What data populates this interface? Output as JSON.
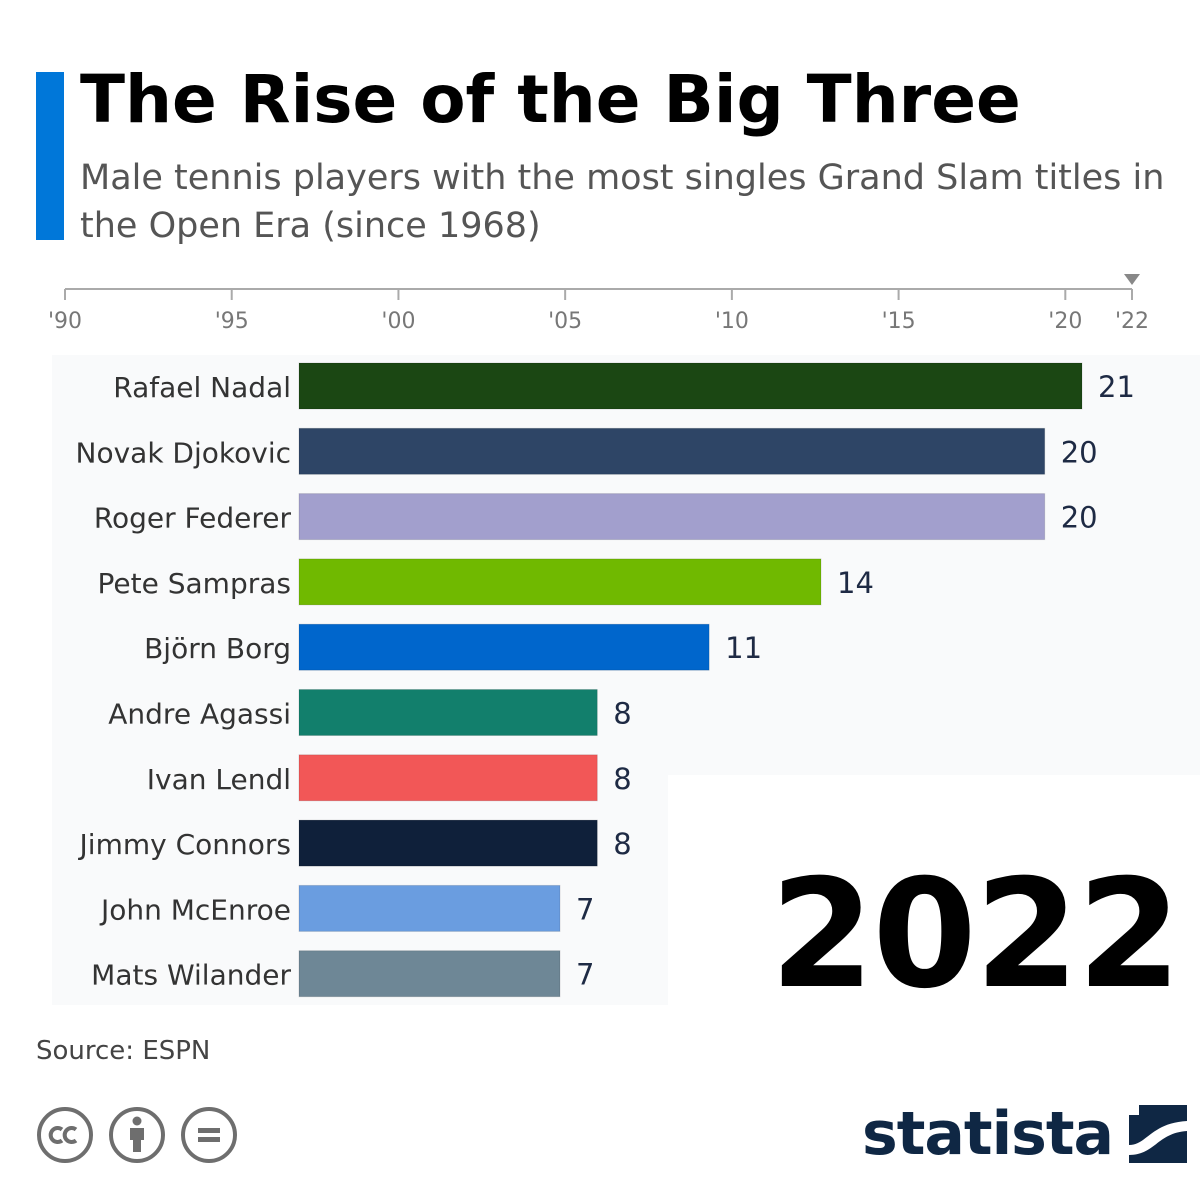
{
  "header": {
    "title": "The Rise of the Big Three",
    "subtitle": "Male tennis players with the most singles Grand Slam titles in the Open Era (since 1968)"
  },
  "timeline": {
    "ticks": [
      "'90",
      "'95",
      "'00",
      "'05",
      "'10",
      "'15",
      "'20",
      "'22"
    ],
    "tick_years": [
      1990,
      1995,
      2000,
      2005,
      2010,
      2015,
      2020,
      2022
    ],
    "current": 2022
  },
  "chart_data": {
    "type": "bar",
    "orientation": "horizontal",
    "categories": [
      "Rafael Nadal",
      "Novak Djokovic",
      "Roger Federer",
      "Pete Sampras",
      "Björn Borg",
      "Andre Agassi",
      "Ivan Lendl",
      "Jimmy Connors",
      "John McEnroe",
      "Mats Wilander"
    ],
    "values": [
      21,
      20,
      20,
      14,
      11,
      8,
      8,
      8,
      7,
      7
    ],
    "colors": [
      "#1b4713",
      "#2e4566",
      "#a29fcd",
      "#70b900",
      "#0066cc",
      "#127f6c",
      "#f25757",
      "#0f203a",
      "#6a9de0",
      "#6e8796"
    ],
    "xlim": [
      0,
      21
    ]
  },
  "big_year": "2022",
  "source": "Source: ESPN",
  "brand": {
    "name": "statista",
    "color": "#0f2744"
  },
  "colors": {
    "accent": "#0077d9",
    "axis": "#aaaaaa",
    "tick_text": "#777777",
    "label_text": "#333333",
    "value_text": "#1e2a44",
    "icon": "#6e6e6e"
  },
  "icons": [
    "cc-icon",
    "attribution-icon",
    "no-derivatives-icon",
    "statista-logo-icon"
  ]
}
